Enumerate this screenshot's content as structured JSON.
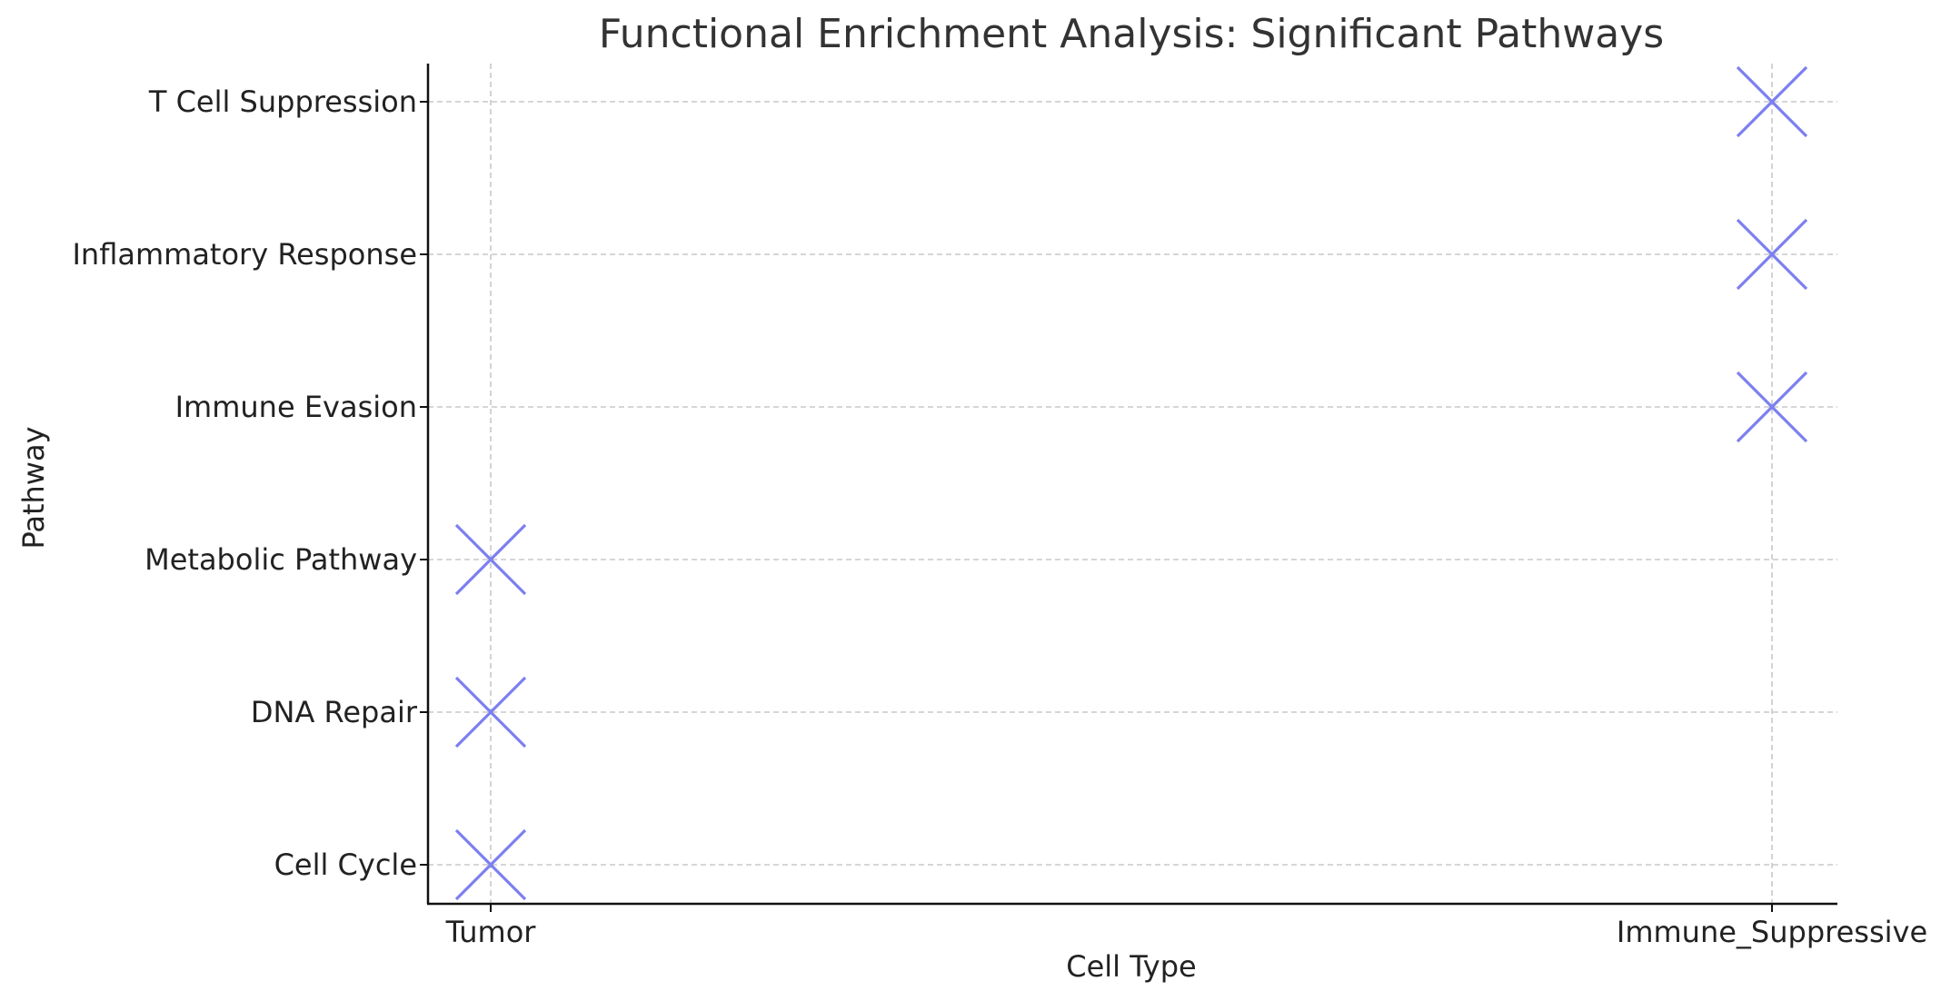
{
  "chart_data": {
    "type": "scatter",
    "title": "Functional Enrichment Analysis: Significant Pathways",
    "xlabel": "Cell Type",
    "ylabel": "Pathway",
    "x_categories": [
      "Tumor",
      "Immune_Suppressive"
    ],
    "y_categories": [
      "Cell Cycle",
      "DNA Repair",
      "Metabolic Pathway",
      "Immune Evasion",
      "Inflammatory Response",
      "T Cell Suppression"
    ],
    "points": [
      {
        "x": "Tumor",
        "y": "Cell Cycle"
      },
      {
        "x": "Tumor",
        "y": "DNA Repair"
      },
      {
        "x": "Tumor",
        "y": "Metabolic Pathway"
      },
      {
        "x": "Immune_Suppressive",
        "y": "Immune Evasion"
      },
      {
        "x": "Immune_Suppressive",
        "y": "Inflammatory Response"
      },
      {
        "x": "Immune_Suppressive",
        "y": "T Cell Suppression"
      }
    ],
    "marker": "x",
    "marker_color": "#7b7ff0",
    "grid": true,
    "legend": "none"
  }
}
